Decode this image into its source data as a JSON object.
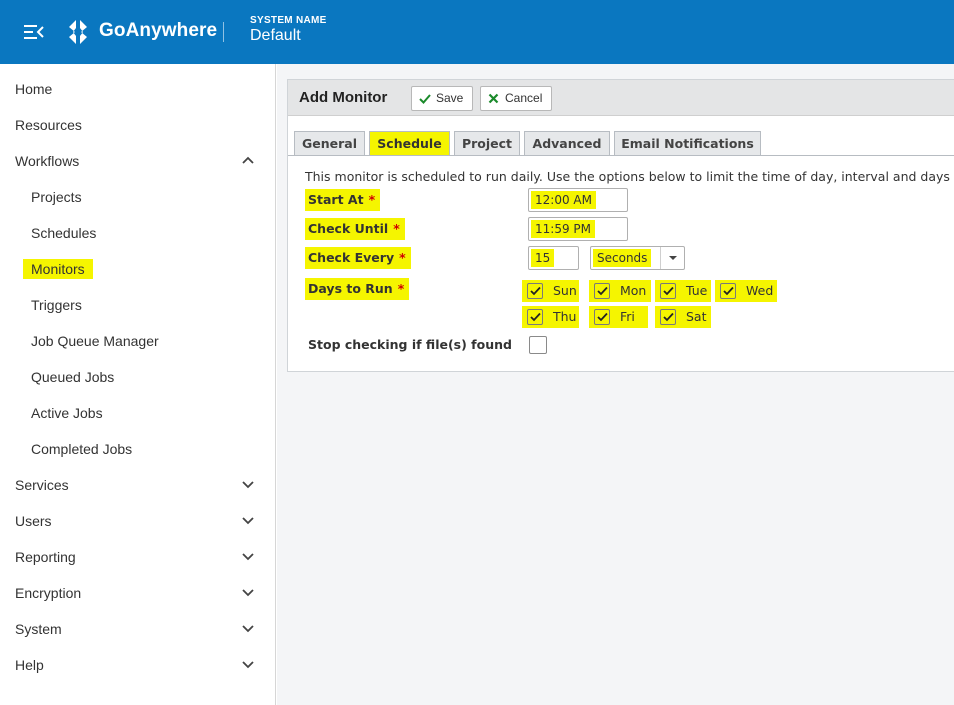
{
  "header": {
    "brand": "GoAnywhere",
    "system_label": "SYSTEM NAME",
    "system_value": "Default",
    "color": "#0a77c0"
  },
  "sidebar": {
    "items": [
      {
        "label": "Home"
      },
      {
        "label": "Resources"
      },
      {
        "label": "Workflows",
        "expanded": true
      },
      {
        "label": "Projects"
      },
      {
        "label": "Schedules"
      },
      {
        "label": "Monitors",
        "highlighted": true
      },
      {
        "label": "Triggers"
      },
      {
        "label": "Job Queue Manager"
      },
      {
        "label": "Queued Jobs"
      },
      {
        "label": "Active Jobs"
      },
      {
        "label": "Completed Jobs"
      },
      {
        "label": "Services"
      },
      {
        "label": "Users"
      },
      {
        "label": "Reporting"
      },
      {
        "label": "Encryption"
      },
      {
        "label": "System"
      },
      {
        "label": "Help"
      }
    ]
  },
  "panel": {
    "title": "Add Monitor",
    "save_label": "Save",
    "cancel_label": "Cancel",
    "tabs": [
      {
        "label": "General"
      },
      {
        "label": "Schedule",
        "active": true
      },
      {
        "label": "Project"
      },
      {
        "label": "Advanced"
      },
      {
        "label": "Email Notifications"
      }
    ]
  },
  "schedule": {
    "info": "This monitor is scheduled to run daily. Use the options below to limit the time of day, interval and days in",
    "start_at_label": "Start At",
    "start_at_value": "12:00 AM",
    "check_until_label": "Check Until",
    "check_until_value": "11:59 PM",
    "check_every_label": "Check Every",
    "check_every_value": "15",
    "check_every_unit": "Seconds",
    "days_label": "Days to Run",
    "required_mark": "*",
    "days": [
      {
        "label": "Sun",
        "checked": true
      },
      {
        "label": "Mon",
        "checked": true
      },
      {
        "label": "Tue",
        "checked": true
      },
      {
        "label": "Wed",
        "checked": true
      },
      {
        "label": "Thu",
        "checked": true
      },
      {
        "label": "Fri",
        "checked": true
      },
      {
        "label": "Sat",
        "checked": true
      }
    ],
    "stop_label": "Stop checking if file(s) found",
    "stop_checked": false
  }
}
